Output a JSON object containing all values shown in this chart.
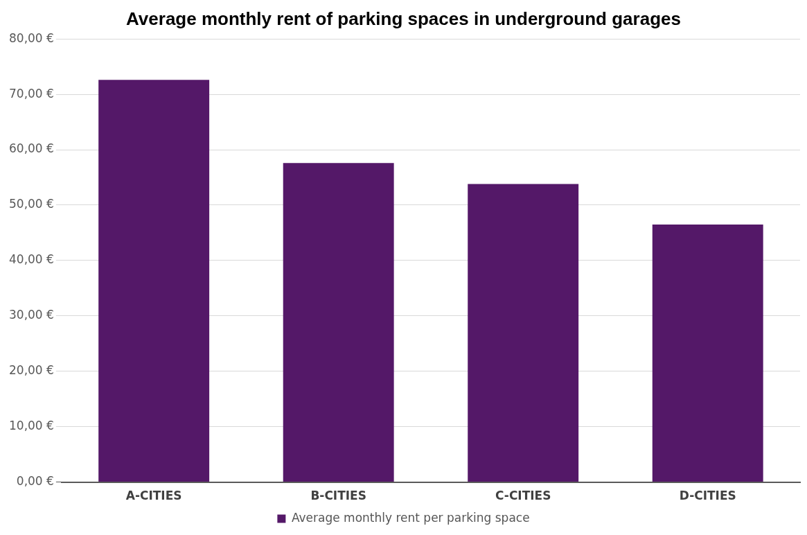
{
  "chart_data": {
    "type": "bar",
    "title": "Average monthly rent of parking spaces in underground garages",
    "categories": [
      "A-CITIES",
      "B-CITIES",
      "C-CITIES",
      "D-CITIES"
    ],
    "series": [
      {
        "name": "Average monthly rent per parking space",
        "color": "#541868",
        "values": [
          72.6,
          57.6,
          53.8,
          46.5
        ]
      }
    ],
    "ylim": [
      0,
      80
    ],
    "yticks": [
      {
        "value": 0,
        "label": "0,00 €"
      },
      {
        "value": 10,
        "label": "10,00 €"
      },
      {
        "value": 20,
        "label": "20,00 €"
      },
      {
        "value": 30,
        "label": "30,00 €"
      },
      {
        "value": 40,
        "label": "40,00 €"
      },
      {
        "value": 50,
        "label": "50,00 €"
      },
      {
        "value": 60,
        "label": "60,00 €"
      },
      {
        "value": 70,
        "label": "70,00 €"
      },
      {
        "value": 80,
        "label": "80,00 €"
      }
    ],
    "grid": "y",
    "legend": "bottom"
  }
}
